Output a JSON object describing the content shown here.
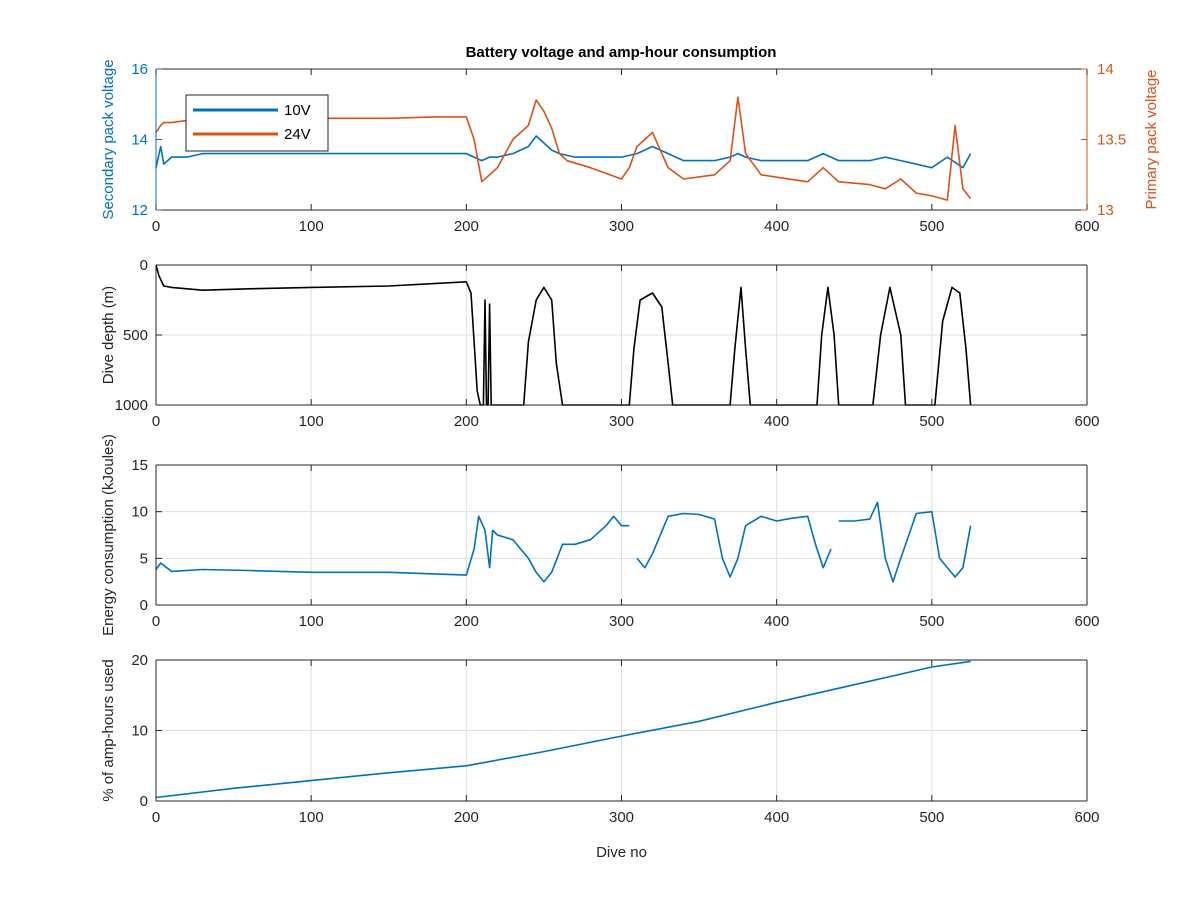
{
  "figure": {
    "title": "Battery voltage and amp-hour consumption",
    "colors": {
      "blue": "#0072BD",
      "orange": "#D95319",
      "black": "#000000",
      "grid": "#dfdfdf",
      "axis": "#262626"
    }
  },
  "chart_data": [
    {
      "type": "line",
      "title": "Battery voltage and amp-hour consumption",
      "xlabel": "",
      "ylabel": "Secondary pack voltage",
      "ylabel_right": "Primary pack voltage",
      "xlim": [
        0,
        600
      ],
      "ylim": [
        12,
        16
      ],
      "ylim_right": [
        13,
        14
      ],
      "xticks": [
        0,
        100,
        200,
        300,
        400,
        500,
        600
      ],
      "yticks": [
        12,
        14,
        16
      ],
      "yticks_right": [
        "13",
        "13.5",
        "14"
      ],
      "grid": false,
      "legend": {
        "position": "top-left",
        "entries": [
          "10V",
          "24V"
        ]
      },
      "series": [
        {
          "name": "10V",
          "axis": "left",
          "color": "#0072BD",
          "x": [
            0,
            3,
            5,
            10,
            20,
            30,
            40,
            60,
            80,
            100,
            120,
            140,
            160,
            180,
            200,
            205,
            210,
            215,
            220,
            230,
            240,
            245,
            250,
            255,
            260,
            270,
            280,
            290,
            300,
            310,
            320,
            330,
            340,
            360,
            370,
            375,
            380,
            390,
            400,
            420,
            430,
            440,
            460,
            470,
            480,
            500,
            510,
            520,
            525
          ],
          "y": [
            13.2,
            13.8,
            13.3,
            13.5,
            13.5,
            13.6,
            13.6,
            13.6,
            13.6,
            13.6,
            13.6,
            13.6,
            13.6,
            13.6,
            13.6,
            13.5,
            13.4,
            13.5,
            13.5,
            13.6,
            13.8,
            14.1,
            13.9,
            13.7,
            13.6,
            13.5,
            13.5,
            13.5,
            13.5,
            13.6,
            13.8,
            13.6,
            13.4,
            13.4,
            13.5,
            13.6,
            13.5,
            13.4,
            13.4,
            13.4,
            13.6,
            13.4,
            13.4,
            13.5,
            13.4,
            13.2,
            13.5,
            13.2,
            13.6
          ]
        },
        {
          "name": "24V",
          "axis": "right",
          "color": "#D95319",
          "x": [
            0,
            3,
            5,
            10,
            30,
            60,
            100,
            150,
            180,
            200,
            205,
            210,
            215,
            220,
            230,
            240,
            245,
            250,
            255,
            260,
            265,
            280,
            300,
            305,
            310,
            320,
            330,
            340,
            360,
            370,
            375,
            380,
            390,
            420,
            430,
            440,
            460,
            470,
            480,
            490,
            500,
            510,
            515,
            520,
            525
          ],
          "y": [
            13.55,
            13.6,
            13.62,
            13.62,
            13.65,
            13.65,
            13.65,
            13.65,
            13.66,
            13.66,
            13.5,
            13.2,
            13.25,
            13.3,
            13.5,
            13.6,
            13.78,
            13.7,
            13.58,
            13.4,
            13.35,
            13.3,
            13.22,
            13.3,
            13.45,
            13.55,
            13.3,
            13.22,
            13.25,
            13.35,
            13.8,
            13.4,
            13.25,
            13.2,
            13.3,
            13.2,
            13.18,
            13.15,
            13.22,
            13.12,
            13.1,
            13.07,
            13.6,
            13.15,
            13.08
          ]
        }
      ]
    },
    {
      "type": "line",
      "xlabel": "",
      "ylabel": "Dive depth (m)",
      "xlim": [
        0,
        600
      ],
      "ylim": [
        0,
        1000
      ],
      "y_reversed": true,
      "xticks": [
        0,
        100,
        200,
        300,
        400,
        500,
        600
      ],
      "yticks": [
        0,
        500,
        1000
      ],
      "grid": true,
      "series": [
        {
          "color": "#000000",
          "x": [
            0,
            2,
            5,
            10,
            30,
            60,
            100,
            150,
            200,
            203,
            207,
            209,
            211,
            212,
            213,
            214,
            215,
            216,
            217,
            218,
            222,
            237,
            240,
            245,
            250,
            255,
            258,
            262,
            305,
            308,
            312,
            320,
            326,
            330,
            333,
            336,
            370,
            373,
            377,
            380,
            383,
            426,
            429,
            433,
            437,
            440,
            462,
            467,
            473,
            480,
            483,
            502,
            507,
            513,
            518,
            522,
            525
          ],
          "y": [
            0,
            80,
            150,
            160,
            180,
            170,
            160,
            150,
            120,
            200,
            900,
            1000,
            1000,
            250,
            1000,
            1000,
            280,
            1000,
            1000,
            1000,
            1000,
            1000,
            550,
            250,
            160,
            250,
            700,
            1000,
            1000,
            600,
            250,
            200,
            300,
            700,
            1000,
            1000,
            1000,
            600,
            160,
            600,
            1000,
            1000,
            500,
            160,
            500,
            1000,
            1000,
            500,
            160,
            500,
            1000,
            1000,
            400,
            160,
            200,
            600,
            1000
          ]
        }
      ]
    },
    {
      "type": "line",
      "xlabel": "",
      "ylabel": "Energy consumption (kJoules)",
      "xlim": [
        0,
        600
      ],
      "ylim": [
        0,
        15
      ],
      "xticks": [
        0,
        100,
        200,
        300,
        400,
        500,
        600
      ],
      "yticks": [
        0,
        5,
        10,
        15
      ],
      "grid": true,
      "series": [
        {
          "color": "#0072BD",
          "x": [
            0,
            3,
            10,
            30,
            60,
            100,
            150,
            200,
            205,
            208,
            212,
            215,
            217,
            220,
            230,
            240,
            245,
            250,
            255,
            262,
            270,
            280,
            290,
            295,
            300,
            305,
            null,
            310,
            315,
            320,
            330,
            340,
            350,
            360,
            365,
            370,
            375,
            380,
            390,
            400,
            410,
            420,
            425,
            430,
            435,
            null,
            440,
            450,
            460,
            465,
            470,
            475,
            480,
            490,
            500,
            505,
            510,
            515,
            520,
            525
          ],
          "y": [
            3.8,
            4.5,
            3.6,
            3.8,
            3.7,
            3.5,
            3.5,
            3.2,
            6,
            9.5,
            8,
            4,
            8,
            7.5,
            7,
            5,
            3.5,
            2.5,
            3.5,
            6.5,
            6.5,
            7,
            8.5,
            9.5,
            8.5,
            8.5,
            null,
            5,
            4,
            5.5,
            9.5,
            9.8,
            9.7,
            9.2,
            5,
            3,
            5,
            8.5,
            9.5,
            9,
            9.3,
            9.5,
            6.5,
            4,
            6,
            null,
            9,
            9,
            9.2,
            11,
            5,
            2.5,
            5,
            9.8,
            10,
            5,
            4,
            3,
            4,
            8.5
          ]
        }
      ]
    },
    {
      "type": "line",
      "xlabel": "Dive no",
      "ylabel": "% of amp-hours used",
      "xlim": [
        0,
        600
      ],
      "ylim": [
        0,
        20
      ],
      "xticks": [
        0,
        100,
        200,
        300,
        400,
        500,
        600
      ],
      "yticks": [
        0,
        10,
        20
      ],
      "grid": true,
      "series": [
        {
          "color": "#0072BD",
          "x": [
            0,
            50,
            100,
            150,
            200,
            250,
            300,
            350,
            400,
            450,
            500,
            525
          ],
          "y": [
            0.5,
            1.8,
            2.9,
            4,
            5,
            7,
            9.2,
            11.3,
            14,
            16.5,
            19,
            19.8
          ]
        }
      ]
    }
  ]
}
